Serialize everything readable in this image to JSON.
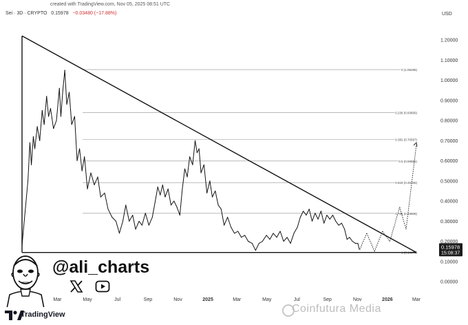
{
  "header": {
    "attribution": "created with TradingView.com, Nov 05, 2025 08:51 UTC",
    "symbol": "Sei · 3D · CRYPTO",
    "price": "0.15978",
    "change": "−0.03480 (−17.88%)",
    "currency": "USD"
  },
  "author": {
    "handle": "@ali_charts",
    "x_icon": "x-logo-icon",
    "video_icon": "youtube-play-icon"
  },
  "footer": {
    "brand": "TradingView",
    "watermark": "Coinfutura Media"
  },
  "chart_data": {
    "type": "line",
    "series": [
      {
        "values": [
          [
            "2023-12-20",
            0.18
          ],
          [
            "2024-01-01",
            0.5
          ],
          [
            "2024-01-05",
            0.69
          ],
          [
            "2024-01-08",
            0.58
          ],
          [
            "2024-01-12",
            0.72
          ],
          [
            "2024-01-15",
            0.66
          ],
          [
            "2024-01-20",
            0.77
          ],
          [
            "2024-01-25",
            0.7
          ],
          [
            "2024-01-30",
            0.85
          ],
          [
            "2024-02-03",
            0.78
          ],
          [
            "2024-02-08",
            0.92
          ],
          [
            "2024-02-12",
            0.82
          ],
          [
            "2024-02-16",
            0.86
          ],
          [
            "2024-02-22",
            0.76
          ],
          [
            "2024-02-28",
            0.8
          ],
          [
            "2024-03-05",
            0.96
          ],
          [
            "2024-03-08",
            0.82
          ],
          [
            "2024-03-12",
            0.95
          ],
          [
            "2024-03-16",
            1.05
          ],
          [
            "2024-03-20",
            0.88
          ],
          [
            "2024-03-25",
            0.94
          ],
          [
            "2024-03-30",
            0.78
          ],
          [
            "2024-04-05",
            0.82
          ],
          [
            "2024-04-10",
            0.6
          ],
          [
            "2024-04-15",
            0.66
          ],
          [
            "2024-04-20",
            0.55
          ],
          [
            "2024-04-25",
            0.62
          ],
          [
            "2024-05-01",
            0.46
          ],
          [
            "2024-05-08",
            0.54
          ],
          [
            "2024-05-15",
            0.48
          ],
          [
            "2024-05-22",
            0.52
          ],
          [
            "2024-05-28",
            0.42
          ],
          [
            "2024-06-05",
            0.44
          ],
          [
            "2024-06-12",
            0.36
          ],
          [
            "2024-06-20",
            0.32
          ],
          [
            "2024-06-28",
            0.3
          ],
          [
            "2024-07-05",
            0.24
          ],
          [
            "2024-07-12",
            0.3
          ],
          [
            "2024-07-18",
            0.38
          ],
          [
            "2024-07-25",
            0.3
          ],
          [
            "2024-08-01",
            0.33
          ],
          [
            "2024-08-07",
            0.26
          ],
          [
            "2024-08-14",
            0.3
          ],
          [
            "2024-08-20",
            0.28
          ],
          [
            "2024-08-27",
            0.34
          ],
          [
            "2024-09-03",
            0.28
          ],
          [
            "2024-09-10",
            0.32
          ],
          [
            "2024-09-16",
            0.4
          ],
          [
            "2024-09-21",
            0.47
          ],
          [
            "2024-09-26",
            0.43
          ],
          [
            "2024-10-01",
            0.48
          ],
          [
            "2024-10-06",
            0.42
          ],
          [
            "2024-10-12",
            0.46
          ],
          [
            "2024-10-18",
            0.38
          ],
          [
            "2024-10-24",
            0.4
          ],
          [
            "2024-10-30",
            0.37
          ],
          [
            "2024-11-05",
            0.33
          ],
          [
            "2024-11-10",
            0.46
          ],
          [
            "2024-11-15",
            0.56
          ],
          [
            "2024-11-20",
            0.52
          ],
          [
            "2024-11-25",
            0.62
          ],
          [
            "2024-12-01",
            0.58
          ],
          [
            "2024-12-06",
            0.7
          ],
          [
            "2024-12-10",
            0.64
          ],
          [
            "2024-12-14",
            0.66
          ],
          [
            "2024-12-18",
            0.54
          ],
          [
            "2024-12-24",
            0.58
          ],
          [
            "2024-12-30",
            0.44
          ],
          [
            "2025-01-05",
            0.5
          ],
          [
            "2025-01-10",
            0.42
          ],
          [
            "2025-01-16",
            0.45
          ],
          [
            "2025-01-22",
            0.38
          ],
          [
            "2025-01-28",
            0.36
          ],
          [
            "2025-02-03",
            0.28
          ],
          [
            "2025-02-10",
            0.32
          ],
          [
            "2025-02-17",
            0.27
          ],
          [
            "2025-02-24",
            0.24
          ],
          [
            "2025-03-03",
            0.25
          ],
          [
            "2025-03-10",
            0.22
          ],
          [
            "2025-03-17",
            0.23
          ],
          [
            "2025-03-24",
            0.2
          ],
          [
            "2025-04-01",
            0.19
          ],
          [
            "2025-04-08",
            0.155
          ],
          [
            "2025-04-15",
            0.19
          ],
          [
            "2025-04-22",
            0.2
          ],
          [
            "2025-04-30",
            0.23
          ],
          [
            "2025-05-07",
            0.21
          ],
          [
            "2025-05-14",
            0.24
          ],
          [
            "2025-05-21",
            0.22
          ],
          [
            "2025-05-28",
            0.25
          ],
          [
            "2025-06-04",
            0.2
          ],
          [
            "2025-06-11",
            0.22
          ],
          [
            "2025-06-18",
            0.19
          ],
          [
            "2025-06-25",
            0.24
          ],
          [
            "2025-07-02",
            0.27
          ],
          [
            "2025-07-08",
            0.32
          ],
          [
            "2025-07-14",
            0.35
          ],
          [
            "2025-07-20",
            0.33
          ],
          [
            "2025-07-26",
            0.36
          ],
          [
            "2025-08-01",
            0.3
          ],
          [
            "2025-08-07",
            0.34
          ],
          [
            "2025-08-13",
            0.31
          ],
          [
            "2025-08-19",
            0.35
          ],
          [
            "2025-08-25",
            0.29
          ],
          [
            "2025-08-31",
            0.33
          ],
          [
            "2025-09-06",
            0.31
          ],
          [
            "2025-09-12",
            0.33
          ],
          [
            "2025-09-18",
            0.3
          ],
          [
            "2025-09-24",
            0.28
          ],
          [
            "2025-09-30",
            0.29
          ],
          [
            "2025-10-06",
            0.26
          ],
          [
            "2025-10-11",
            0.21
          ],
          [
            "2025-10-16",
            0.22
          ],
          [
            "2025-10-22",
            0.2
          ],
          [
            "2025-10-28",
            0.19
          ],
          [
            "2025-11-02",
            0.19
          ],
          [
            "2025-11-05",
            0.15978
          ]
        ]
      }
    ],
    "projection": [
      [
        "2025-11-06",
        0.16
      ],
      [
        "2025-11-20",
        0.24
      ],
      [
        "2025-12-06",
        0.15
      ],
      [
        "2025-12-22",
        0.25
      ],
      [
        "2026-01-06",
        0.2
      ],
      [
        "2026-01-26",
        0.37
      ],
      [
        "2026-02-08",
        0.26
      ],
      [
        "2026-03-01",
        0.68
      ]
    ],
    "trendline": [
      [
        "2023-12-20",
        1.22
      ],
      [
        "2026-03-01",
        0.1447
      ]
    ],
    "fib_levels": [
      {
        "label": "0 (1.05286)",
        "value": 1.05286
      },
      {
        "label": "0.236 (0.83856)",
        "value": 0.83856
      },
      {
        "label": "0.382 (0.70597)",
        "value": 0.70597
      },
      {
        "label": "0.5 (0.59881)",
        "value": 0.59881
      },
      {
        "label": "0.618 (0.49165)",
        "value": 0.49165
      },
      {
        "label": "0.786 (0.33908)",
        "value": 0.33908
      },
      {
        "label": "1 (0.14474)",
        "value": 0.14474
      }
    ],
    "y_ticks": [
      "1.20000",
      "1.10000",
      "1.00000",
      "0.90000",
      "0.80000",
      "0.70000",
      "0.60000",
      "0.50000",
      "0.40000",
      "0.30000",
      "0.20000",
      "0.10000",
      "0.00000"
    ],
    "x_ticks": [
      {
        "label": "Mar",
        "date": "2024-03-01"
      },
      {
        "label": "May",
        "date": "2024-05-01"
      },
      {
        "label": "Jul",
        "date": "2024-07-01"
      },
      {
        "label": "Sep",
        "date": "2024-09-01"
      },
      {
        "label": "Nov",
        "date": "2024-11-01"
      },
      {
        "label": "2025",
        "date": "2025-01-01"
      },
      {
        "label": "Mar",
        "date": "2025-03-01"
      },
      {
        "label": "May",
        "date": "2025-05-01"
      },
      {
        "label": "Jul",
        "date": "2025-07-01"
      },
      {
        "label": "Sep",
        "date": "2025-09-01"
      },
      {
        "label": "Nov",
        "date": "2025-11-01"
      },
      {
        "label": "2026",
        "date": "2026-01-01"
      },
      {
        "label": "Mar",
        "date": "2026-03-01"
      }
    ],
    "price_badge": {
      "price": "0.15978",
      "countdown": "15:08:37"
    },
    "ylim": [
      0,
      1.28
    ]
  }
}
